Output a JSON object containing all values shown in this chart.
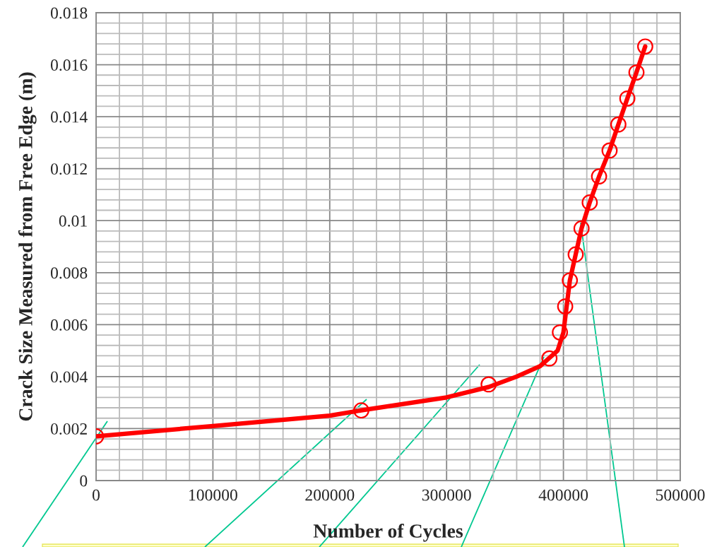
{
  "chart_data": {
    "type": "scatter",
    "xlabel": "Number of Cycles",
    "ylabel": "Crack Size Measured from Free Edge (m)",
    "xlim": [
      0,
      500000
    ],
    "ylim": [
      0,
      0.018
    ],
    "xticks": [
      0,
      100000,
      200000,
      300000,
      400000,
      500000
    ],
    "yticks": [
      0,
      0.002,
      0.004,
      0.006,
      0.008,
      0.01,
      0.012,
      0.014,
      0.016,
      0.018
    ],
    "grid": true,
    "legend": false,
    "series": [
      {
        "type": "line",
        "color": "#ff0000",
        "marker": "none",
        "line_style": "solid",
        "x": [
          0,
          100000,
          200000,
          227000,
          300000,
          336000,
          360000,
          380000,
          395000,
          400000,
          405500,
          410500,
          415500,
          422500,
          430500,
          439500,
          447000,
          454700,
          462500,
          470000
        ],
        "values": [
          0.0017,
          0.0021,
          0.0025,
          0.0027,
          0.0032,
          0.0036,
          0.004,
          0.0044,
          0.005,
          0.0057,
          0.0077,
          0.0087,
          0.0097,
          0.0107,
          0.0117,
          0.0127,
          0.0137,
          0.0147,
          0.0157,
          0.0167
        ]
      },
      {
        "color": "#ff0000",
        "marker": "circle",
        "x": [
          0,
          227000,
          336000,
          388000,
          397000,
          401500,
          405500,
          410500,
          415500,
          422500,
          430500,
          439500,
          447000,
          454700,
          462500,
          470000
        ],
        "values": [
          0.0017,
          0.0027,
          0.0037,
          0.0047,
          0.0057,
          0.0067,
          0.0077,
          0.0087,
          0.0097,
          0.0107,
          0.0117,
          0.0127,
          0.0137,
          0.0147,
          0.0157,
          0.0167
        ]
      }
    ]
  }
}
